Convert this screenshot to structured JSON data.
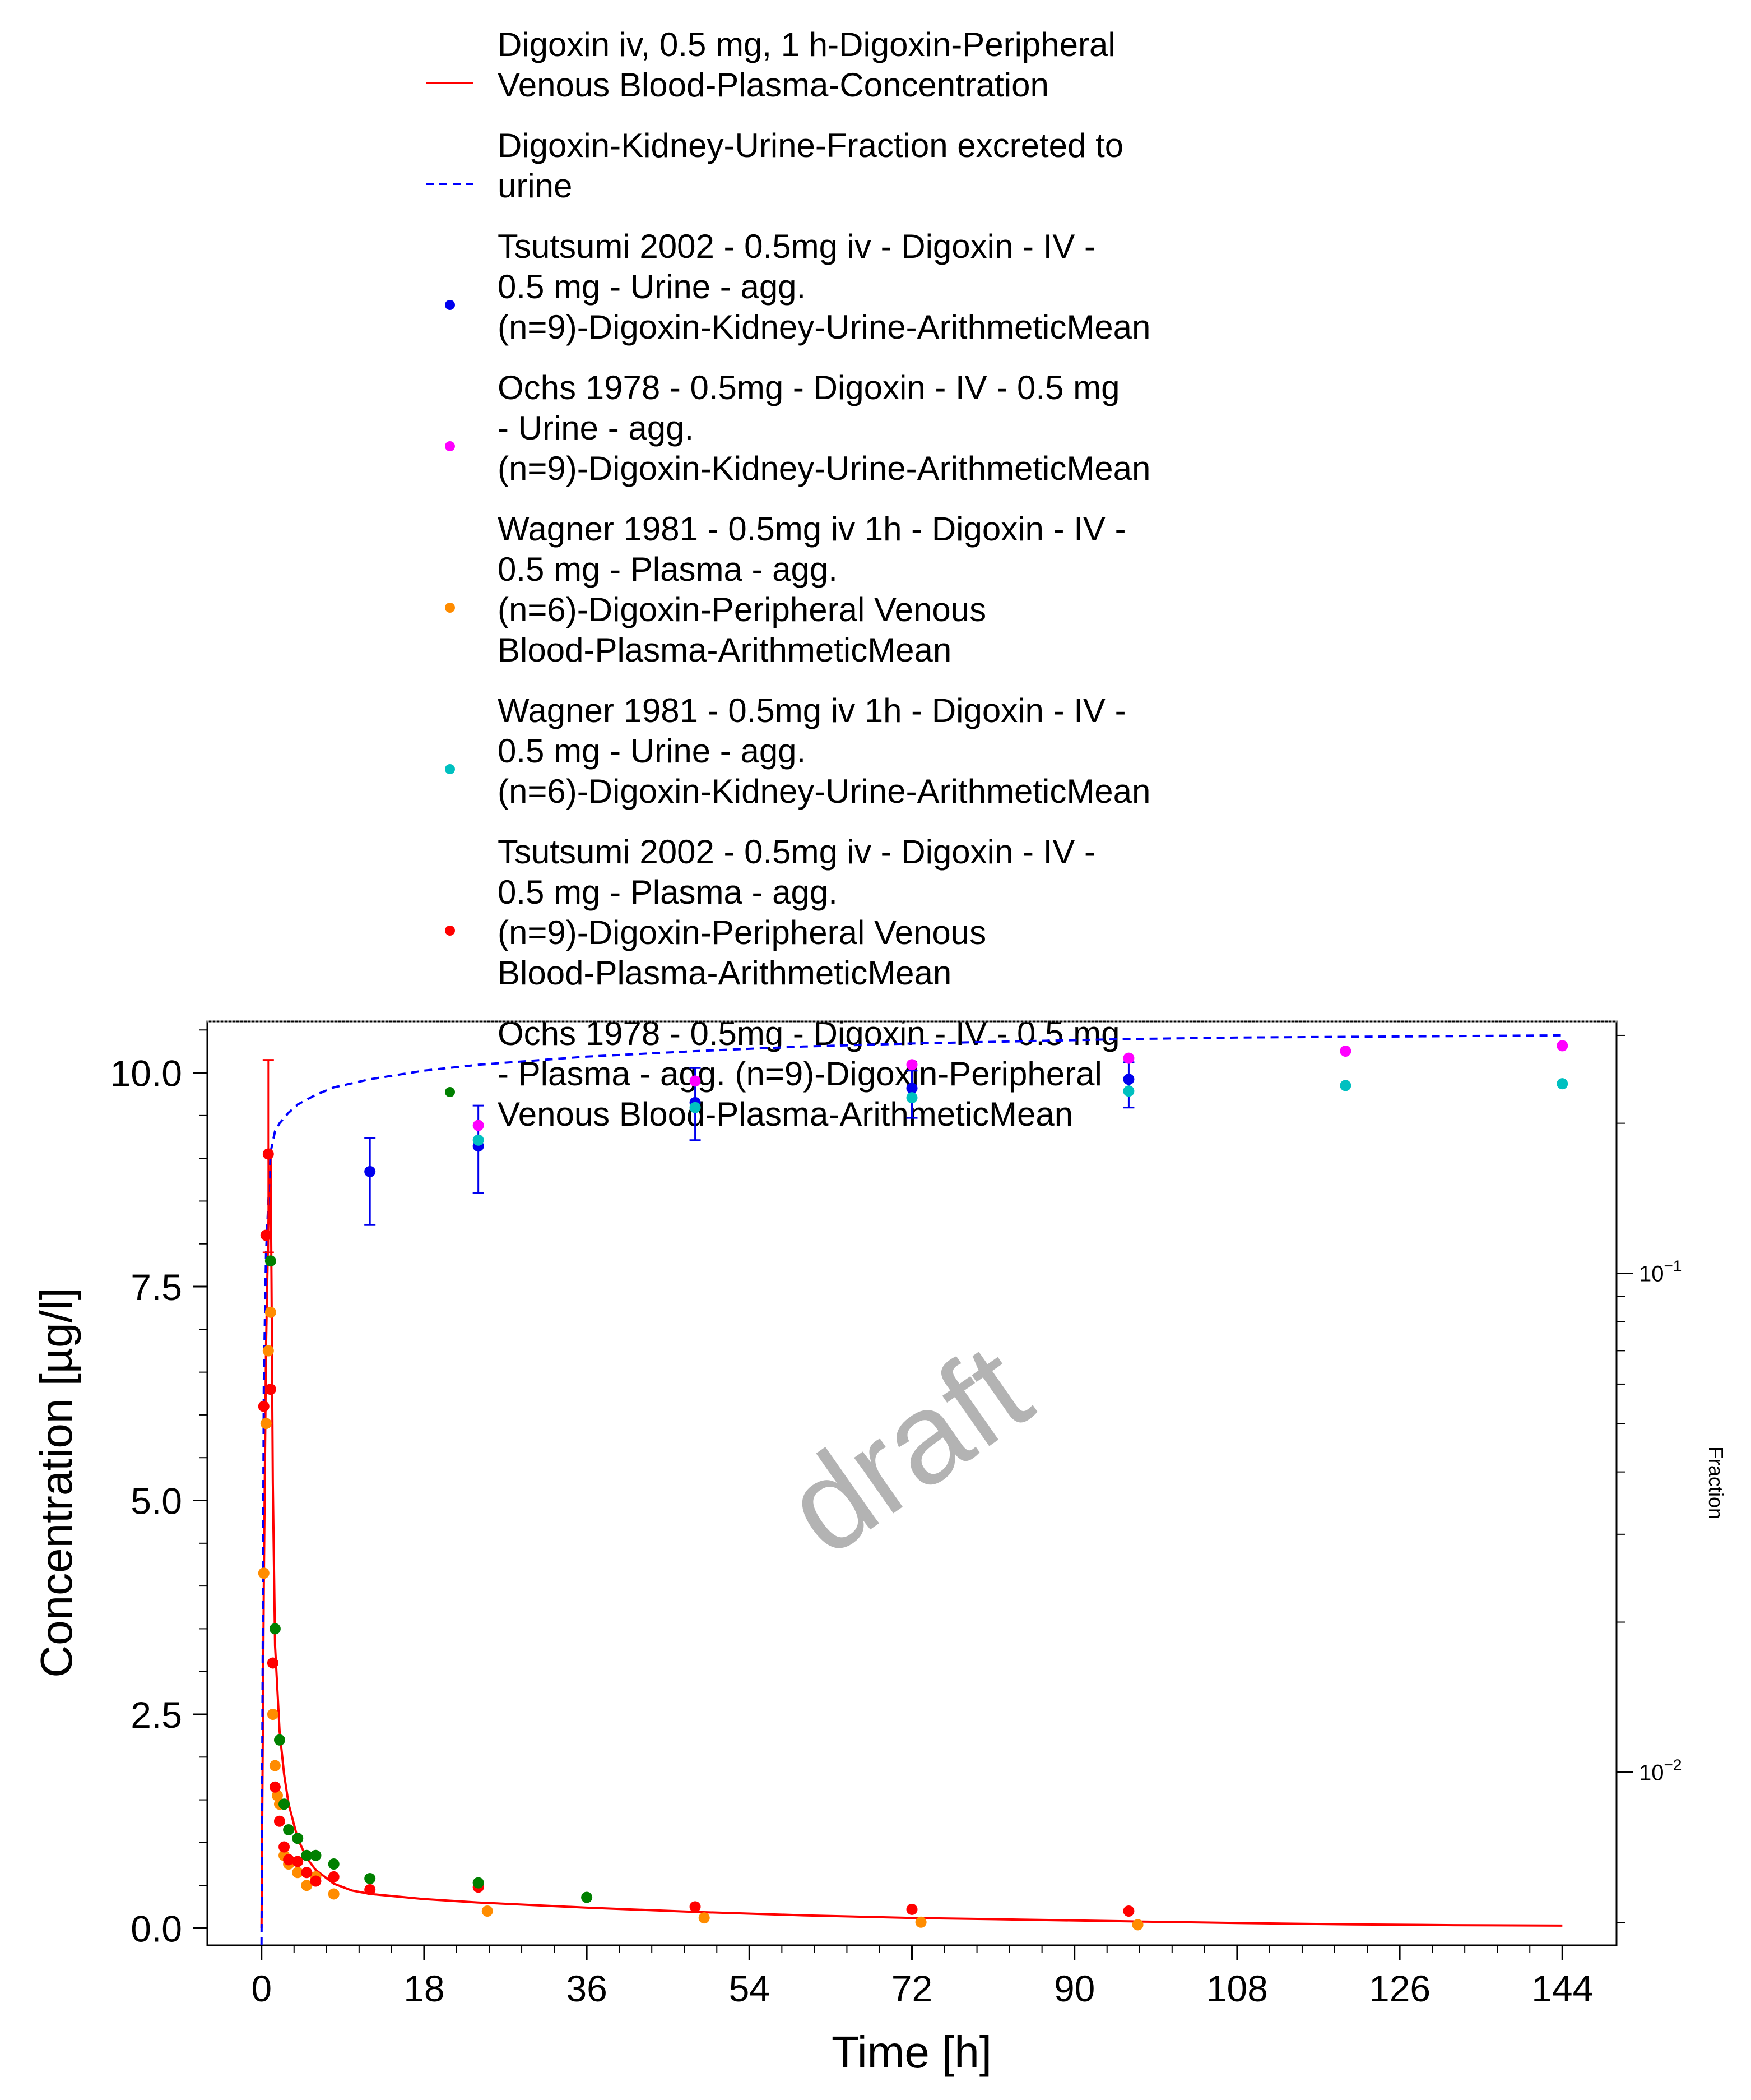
{
  "chart_data": {
    "type": "scatter",
    "title": "",
    "xlabel": "Time [h]",
    "ylabel": "Concentration [µg/l]",
    "y2label": "Fraction",
    "watermark": "draft",
    "xlim": [
      -6,
      150
    ],
    "ylim": [
      -0.2,
      10.6
    ],
    "y2lim": [
      0.0045,
      0.32
    ],
    "y2scale": "log",
    "x_ticks": [
      "0",
      "18",
      "36",
      "54",
      "72",
      "90",
      "108",
      "126",
      "144"
    ],
    "y_ticks": [
      "0.0",
      "2.5",
      "5.0",
      "7.5",
      "10.0"
    ],
    "y2_ticks": [
      {
        "base": "10",
        "exp": "−1",
        "value": 0.1
      },
      {
        "base": "10",
        "exp": "−2",
        "value": 0.01
      }
    ],
    "legend_position": "top",
    "grid": false,
    "series": [
      {
        "name": "Digoxin iv, 0.5 mg, 1 h-Digoxin-Peripheral Venous Blood-Plasma-Concentration",
        "kind": "line",
        "axis": "left",
        "color": "#ff0000",
        "dash": "solid",
        "x": [
          0,
          0.25,
          0.5,
          0.75,
          1.0,
          1.1,
          1.25,
          1.5,
          2,
          2.5,
          3,
          4,
          5,
          6,
          8,
          10,
          12,
          18,
          24,
          36,
          48,
          60,
          72,
          84,
          96,
          108,
          120,
          132,
          144
        ],
        "y": [
          0,
          4.0,
          6.8,
          8.2,
          9.0,
          7.6,
          5.2,
          3.3,
          2.3,
          1.8,
          1.45,
          1.05,
          0.82,
          0.68,
          0.52,
          0.44,
          0.4,
          0.34,
          0.3,
          0.24,
          0.19,
          0.15,
          0.12,
          0.1,
          0.08,
          0.06,
          0.045,
          0.035,
          0.03
        ]
      },
      {
        "name": "Digoxin-Kidney-Urine-Fraction excreted to urine",
        "kind": "line",
        "axis": "right",
        "color": "#0000ff",
        "dash": "dashed",
        "x": [
          0,
          0.25,
          0.5,
          1,
          1.5,
          2,
          3,
          4,
          6,
          8,
          12,
          18,
          24,
          36,
          48,
          60,
          72,
          84,
          96,
          108,
          120,
          132,
          144
        ],
        "y": [
          0.0045,
          0.06,
          0.11,
          0.175,
          0.193,
          0.2,
          0.21,
          0.218,
          0.228,
          0.236,
          0.245,
          0.255,
          0.262,
          0.272,
          0.279,
          0.285,
          0.289,
          0.292,
          0.295,
          0.297,
          0.298,
          0.299,
          0.3
        ]
      },
      {
        "name": "Tsutsumi 2002 - 0.5mg iv - Digoxin - IV - 0.5 mg - Urine - agg. (n=9)-Digoxin-Kidney-Urine-ArithmeticMean",
        "kind": "points",
        "axis": "right",
        "color": "#0000ee",
        "x": [
          12,
          24,
          48,
          72,
          96
        ],
        "y": [
          0.16,
          0.18,
          0.22,
          0.235,
          0.245
        ],
        "err_low": [
          0.125,
          0.145,
          0.185,
          0.205,
          0.215
        ],
        "err_high": [
          0.187,
          0.217,
          0.258,
          0.255,
          0.265
        ]
      },
      {
        "name": "Ochs 1978 - 0.5mg - Digoxin - IV - 0.5 mg - Urine - agg. (n=9)-Digoxin-Kidney-Urine-ArithmeticMean",
        "kind": "points",
        "axis": "right",
        "color": "#ff00ff",
        "x": [
          24,
          48,
          72,
          96,
          120,
          144
        ],
        "y": [
          0.198,
          0.243,
          0.262,
          0.27,
          0.279,
          0.286
        ]
      },
      {
        "name": "Wagner 1981 - 0.5mg iv 1h - Digoxin - IV - 0.5 mg - Plasma - agg. (n=6)-Digoxin-Peripheral Venous Blood-Plasma-ArithmeticMean",
        "kind": "points",
        "axis": "left",
        "color": "#ff8c00",
        "x": [
          0.25,
          0.5,
          0.75,
          1,
          1.25,
          1.5,
          1.75,
          2,
          2.5,
          3,
          4,
          5,
          6,
          8,
          25,
          49,
          73,
          97
        ],
        "y": [
          4.15,
          5.9,
          6.75,
          7.2,
          2.5,
          1.9,
          1.55,
          1.45,
          0.85,
          0.75,
          0.65,
          0.5,
          0.6,
          0.4,
          0.2,
          0.12,
          0.07,
          0.04
        ]
      },
      {
        "name": "Wagner 1981 - 0.5mg iv 1h - Digoxin - IV - 0.5 mg - Urine - agg. (n=6)-Digoxin-Kidney-Urine-ArithmeticMean",
        "kind": "points",
        "axis": "right",
        "color": "#00c0c0",
        "x": [
          24,
          48,
          72,
          96,
          120,
          144
        ],
        "y": [
          0.185,
          0.215,
          0.225,
          0.232,
          0.238,
          0.24
        ]
      },
      {
        "name": "Tsutsumi 2002 - 0.5mg iv - Digoxin - IV - 0.5 mg - Plasma - agg. (n=9)-Digoxin-Peripheral Venous Blood-Plasma-ArithmeticMean",
        "kind": "points",
        "axis": "left",
        "color": "#ff0000",
        "x": [
          0.25,
          0.5,
          0.75,
          1,
          1.25,
          1.5,
          2,
          2.5,
          3,
          4,
          5,
          6,
          8,
          12,
          24,
          48,
          72,
          96
        ],
        "y": [
          6.1,
          8.1,
          9.05,
          6.3,
          3.1,
          1.65,
          1.25,
          0.95,
          0.8,
          0.78,
          0.65,
          0.55,
          0.6,
          0.45,
          0.48,
          0.25,
          0.22,
          0.2
        ],
        "err_low": [
          null,
          null,
          7.9,
          null,
          null,
          null,
          null,
          null,
          null,
          null,
          null,
          null,
          null,
          null,
          null,
          null,
          null,
          null
        ],
        "err_high": [
          null,
          null,
          10.15,
          null,
          null,
          null,
          null,
          null,
          null,
          null,
          null,
          null,
          null,
          null,
          null,
          null,
          null,
          null
        ]
      },
      {
        "name": "Ochs 1978 - 0.5mg - Digoxin - IV - 0.5 mg - Plasma - agg. (n=9)-Digoxin-Peripheral Venous Blood-Plasma-ArithmeticMean",
        "kind": "points",
        "axis": "left",
        "color": "#008000",
        "x": [
          1,
          1.5,
          2,
          2.5,
          3,
          4,
          5,
          6,
          8,
          12,
          24,
          36
        ],
        "y": [
          7.8,
          3.5,
          2.2,
          1.45,
          1.15,
          1.05,
          0.85,
          0.85,
          0.75,
          0.58,
          0.53,
          0.36
        ]
      }
    ]
  }
}
